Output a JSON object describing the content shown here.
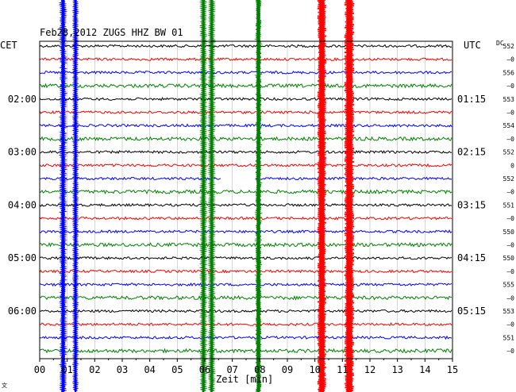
{
  "chart_data": {
    "type": "line",
    "title": "Feb28,2012   ZUGS HHZ BW 01",
    "left_label": "CET",
    "right_label": "UTC",
    "dc_label": "DC",
    "xlabel": "Zeit [min]",
    "xlim": [
      0,
      15
    ],
    "x_ticks": [
      "00",
      "01",
      "02",
      "03",
      "04",
      "05",
      "06",
      "07",
      "08",
      "09",
      "10",
      "11",
      "12",
      "13",
      "14",
      "15"
    ],
    "trace_count": 24,
    "trace_colors": [
      "#000000",
      "#ff0000",
      "#0000ff",
      "#008000"
    ],
    "left_time_labels": [
      {
        "trace": 4,
        "text": "02:00"
      },
      {
        "trace": 8,
        "text": "03:00"
      },
      {
        "trace": 12,
        "text": "04:00"
      },
      {
        "trace": 16,
        "text": "05:00"
      },
      {
        "trace": 20,
        "text": "06:00"
      }
    ],
    "right_time_labels": [
      {
        "trace": 4,
        "text": "01:15"
      },
      {
        "trace": 8,
        "text": "02:15"
      },
      {
        "trace": 12,
        "text": "03:15"
      },
      {
        "trace": 16,
        "text": "04:15"
      },
      {
        "trace": 20,
        "text": "05:15"
      }
    ],
    "dc_values": [
      "552",
      "–0",
      "556",
      "–0",
      "553",
      "–0",
      "554",
      "–0",
      "552",
      "0",
      "552",
      "–0",
      "551",
      "–0",
      "550",
      "–0",
      "550",
      "–0",
      "555",
      "–0",
      "553",
      "–0",
      "551",
      "–0"
    ],
    "bursts": [
      {
        "color": "#0000ff",
        "x": 0.85,
        "halfwidth": 0.08
      },
      {
        "color": "#0000ff",
        "x": 1.3,
        "halfwidth": 0.06
      },
      {
        "color": "#008000",
        "x": 5.95,
        "halfwidth": 0.07
      },
      {
        "color": "#008000",
        "x": 6.25,
        "halfwidth": 0.07
      },
      {
        "color": "#008000",
        "x": 7.95,
        "halfwidth": 0.1
      },
      {
        "color": "#ff0000",
        "x": 10.25,
        "halfwidth": 0.16
      },
      {
        "color": "#ff0000",
        "x": 11.25,
        "halfwidth": 0.18
      }
    ],
    "gap": {
      "trace": 10,
      "from": 6.6,
      "to": 7.8
    },
    "corner_mark": "⽂"
  }
}
